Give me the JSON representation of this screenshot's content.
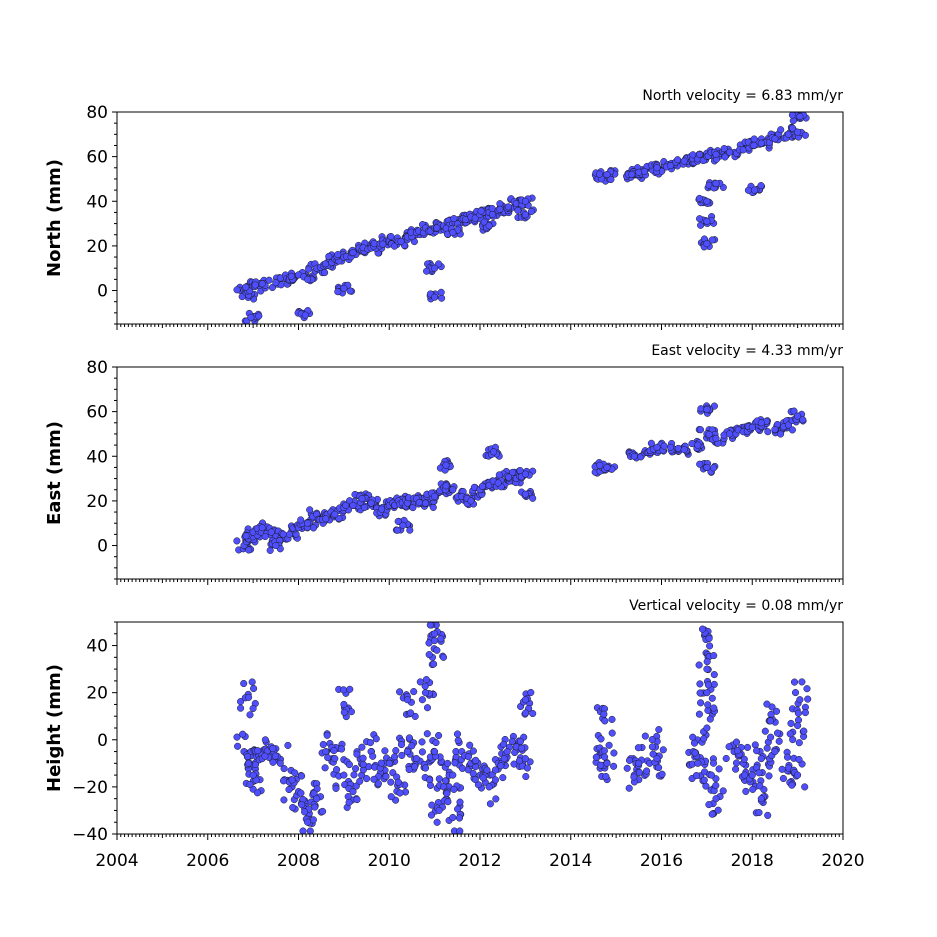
{
  "chart_data": {
    "type": "scatter",
    "x_type": "decimal year",
    "xlim": [
      2004,
      2020
    ],
    "x_ticks": [
      "2004",
      "2006",
      "2008",
      "2010",
      "2012",
      "2014",
      "2016",
      "2018",
      "2020"
    ],
    "marker_color": "#4f4fff",
    "marker_edge_color": "#1a1a1a",
    "panels": [
      {
        "name": "north",
        "title": "North velocity = 6.83 mm/yr",
        "ylabel": "North (mm)",
        "ylim": [
          -15,
          80
        ],
        "y_ticks": [
          "0",
          "20",
          "40",
          "60",
          "80"
        ],
        "y_tick_values": [
          0,
          20,
          40,
          60,
          80
        ],
        "points": [
          [
            2006.8,
            0.0
          ],
          [
            2006.9,
            -2.0
          ],
          [
            2007.0,
            2.0
          ],
          [
            2007.2,
            3.0
          ],
          [
            2007.5,
            3.5
          ],
          [
            2007.8,
            5.0
          ],
          [
            2008.0,
            7.0
          ],
          [
            2008.2,
            5.0
          ],
          [
            2008.4,
            10.0
          ],
          [
            2008.6,
            12.0
          ],
          [
            2008.8,
            14.0
          ],
          [
            2009.0,
            15.0
          ],
          [
            2009.2,
            17.0
          ],
          [
            2009.4,
            18.0
          ],
          [
            2009.6,
            19.0
          ],
          [
            2009.8,
            21.0
          ],
          [
            2010.0,
            22.0
          ],
          [
            2010.2,
            22.0
          ],
          [
            2010.4,
            24.0
          ],
          [
            2010.6,
            26.0
          ],
          [
            2010.8,
            28.0
          ],
          [
            2011.0,
            28.0
          ],
          [
            2011.2,
            29.0
          ],
          [
            2011.4,
            30.0
          ],
          [
            2011.6,
            32.0
          ],
          [
            2011.8,
            33.0
          ],
          [
            2012.0,
            34.0
          ],
          [
            2012.2,
            35.0
          ],
          [
            2012.4,
            36.0
          ],
          [
            2012.6,
            37.0
          ],
          [
            2012.8,
            39.0
          ],
          [
            2013.0,
            40.0
          ],
          [
            2014.7,
            51.0
          ],
          [
            2014.8,
            52.0
          ],
          [
            2015.4,
            52.0
          ],
          [
            2015.5,
            53.0
          ],
          [
            2015.8,
            54.0
          ],
          [
            2015.9,
            55.0
          ],
          [
            2016.2,
            56.0
          ],
          [
            2016.5,
            58.0
          ],
          [
            2016.8,
            59.0
          ],
          [
            2017.0,
            60.0
          ],
          [
            2017.2,
            61.0
          ],
          [
            2017.5,
            62.0
          ],
          [
            2017.8,
            63.0
          ],
          [
            2018.0,
            65.0
          ],
          [
            2018.2,
            66.0
          ],
          [
            2018.5,
            68.0
          ],
          [
            2018.8,
            70.0
          ],
          [
            2019.0,
            71.0
          ],
          [
            2006.95,
            -12.0
          ],
          [
            2008.15,
            -11.0
          ],
          [
            2009.0,
            1.0
          ],
          [
            2011.0,
            10.0
          ],
          [
            2011.0,
            -3.0
          ],
          [
            2011.4,
            26.0
          ],
          [
            2012.2,
            29.0
          ],
          [
            2013.0,
            34.0
          ],
          [
            2017.0,
            40.0
          ],
          [
            2017.0,
            31.0
          ],
          [
            2017.0,
            21.0
          ],
          [
            2017.2,
            48.0
          ],
          [
            2018.05,
            45.0
          ],
          [
            2019.05,
            78.0
          ]
        ]
      },
      {
        "name": "east",
        "title": "East velocity = 4.33 mm/yr",
        "ylabel": "East (mm)",
        "ylim": [
          -15,
          80
        ],
        "y_ticks": [
          "0",
          "20",
          "40",
          "60",
          "80"
        ],
        "y_tick_values": [
          0,
          20,
          40,
          60,
          80
        ],
        "points": [
          [
            2006.8,
            0.0
          ],
          [
            2006.9,
            3.0
          ],
          [
            2007.0,
            6.0
          ],
          [
            2007.2,
            8.0
          ],
          [
            2007.4,
            6.0
          ],
          [
            2007.6,
            3.0
          ],
          [
            2007.8,
            5.0
          ],
          [
            2008.0,
            8.0
          ],
          [
            2008.2,
            10.0
          ],
          [
            2008.4,
            14.0
          ],
          [
            2008.6,
            12.0
          ],
          [
            2008.8,
            14.0
          ],
          [
            2009.0,
            17.0
          ],
          [
            2009.2,
            18.0
          ],
          [
            2009.4,
            21.0
          ],
          [
            2009.6,
            19.0
          ],
          [
            2009.8,
            15.0
          ],
          [
            2010.0,
            18.0
          ],
          [
            2010.2,
            20.0
          ],
          [
            2010.4,
            19.0
          ],
          [
            2010.6,
            21.0
          ],
          [
            2010.8,
            19.0
          ],
          [
            2011.0,
            22.0
          ],
          [
            2011.2,
            26.0
          ],
          [
            2011.4,
            25.0
          ],
          [
            2011.6,
            22.0
          ],
          [
            2011.8,
            20.0
          ],
          [
            2012.0,
            25.0
          ],
          [
            2012.2,
            27.0
          ],
          [
            2012.4,
            28.0
          ],
          [
            2012.6,
            31.0
          ],
          [
            2012.8,
            30.0
          ],
          [
            2013.0,
            32.0
          ],
          [
            2014.7,
            34.0
          ],
          [
            2014.8,
            35.0
          ],
          [
            2015.4,
            40.0
          ],
          [
            2015.8,
            42.0
          ],
          [
            2015.9,
            44.0
          ],
          [
            2016.2,
            44.0
          ],
          [
            2016.5,
            43.0
          ],
          [
            2016.8,
            45.0
          ],
          [
            2017.0,
            50.0
          ],
          [
            2017.2,
            48.0
          ],
          [
            2017.5,
            50.0
          ],
          [
            2017.8,
            51.0
          ],
          [
            2018.0,
            53.0
          ],
          [
            2018.2,
            55.0
          ],
          [
            2018.5,
            52.0
          ],
          [
            2018.8,
            54.0
          ],
          [
            2019.0,
            58.0
          ],
          [
            2007.5,
            0.0
          ],
          [
            2010.3,
            9.0
          ],
          [
            2011.25,
            36.0
          ],
          [
            2012.3,
            42.0
          ],
          [
            2013.0,
            23.0
          ],
          [
            2017.0,
            61.0
          ],
          [
            2017.0,
            35.0
          ]
        ]
      },
      {
        "name": "height",
        "title": "Vertical velocity = 0.08 mm/yr",
        "ylabel": "Height (mm)",
        "ylim": [
          -40,
          50
        ],
        "y_ticks": [
          "−40",
          "−20",
          "0",
          "20",
          "40"
        ],
        "y_tick_values": [
          -40,
          -20,
          0,
          20,
          40
        ],
        "points": [
          [
            2006.8,
            -5.0
          ],
          [
            2006.9,
            -10.0
          ],
          [
            2007.0,
            -15.0
          ],
          [
            2007.2,
            -8.0
          ],
          [
            2007.4,
            -3.0
          ],
          [
            2007.6,
            -10.0
          ],
          [
            2007.8,
            -18.0
          ],
          [
            2008.0,
            -22.0
          ],
          [
            2008.2,
            -30.0
          ],
          [
            2008.4,
            -25.0
          ],
          [
            2008.6,
            -5.0
          ],
          [
            2008.8,
            -8.0
          ],
          [
            2009.0,
            -15.0
          ],
          [
            2009.2,
            -22.0
          ],
          [
            2009.4,
            -10.0
          ],
          [
            2009.6,
            -5.0
          ],
          [
            2009.8,
            -12.0
          ],
          [
            2010.0,
            -10.0
          ],
          [
            2010.2,
            -18.0
          ],
          [
            2010.4,
            -5.0
          ],
          [
            2010.6,
            -8.0
          ],
          [
            2010.8,
            -12.0
          ],
          [
            2011.0,
            -5.0
          ],
          [
            2011.2,
            -20.0
          ],
          [
            2011.4,
            -15.0
          ],
          [
            2011.6,
            -5.0
          ],
          [
            2011.8,
            -10.0
          ],
          [
            2012.0,
            -15.0
          ],
          [
            2012.2,
            -20.0
          ],
          [
            2012.4,
            -10.0
          ],
          [
            2012.6,
            -5.0
          ],
          [
            2012.8,
            -3.0
          ],
          [
            2013.0,
            -8.0
          ],
          [
            2014.7,
            -5.0
          ],
          [
            2014.8,
            -10.0
          ],
          [
            2015.4,
            -15.0
          ],
          [
            2015.5,
            -10.0
          ],
          [
            2015.8,
            -3.0
          ],
          [
            2015.9,
            -8.0
          ],
          [
            2016.7,
            -5.0
          ],
          [
            2016.8,
            -10.0
          ],
          [
            2017.0,
            5.0
          ],
          [
            2017.0,
            20.0
          ],
          [
            2017.05,
            43.0
          ],
          [
            2017.1,
            -15.0
          ],
          [
            2017.2,
            -25.0
          ],
          [
            2017.6,
            -5.0
          ],
          [
            2017.8,
            -10.0
          ],
          [
            2018.0,
            -15.0
          ],
          [
            2018.2,
            -8.0
          ],
          [
            2018.5,
            -5.0
          ],
          [
            2018.8,
            -12.0
          ],
          [
            2019.0,
            -15.0
          ],
          [
            2019.05,
            17.0
          ],
          [
            2006.9,
            18.0
          ],
          [
            2009.0,
            15.0
          ],
          [
            2010.4,
            17.0
          ],
          [
            2010.8,
            20.0
          ],
          [
            2011.0,
            45.0
          ],
          [
            2011.05,
            38.0
          ],
          [
            2011.1,
            -30.0
          ],
          [
            2011.4,
            -33.0
          ],
          [
            2008.2,
            -35.0
          ],
          [
            2013.0,
            17.0
          ],
          [
            2014.75,
            8.0
          ],
          [
            2017.0,
            30.0
          ],
          [
            2018.4,
            8.0
          ],
          [
            2019.0,
            6.0
          ],
          [
            2018.2,
            -25.0
          ]
        ]
      }
    ]
  }
}
